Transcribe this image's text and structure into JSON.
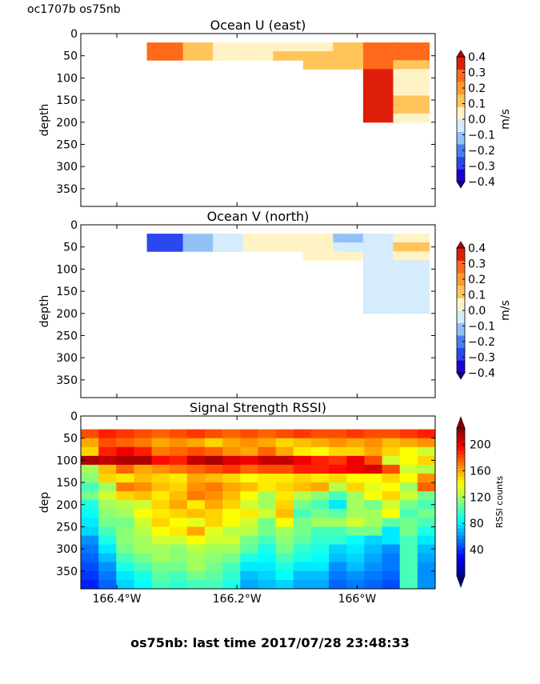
{
  "header": {
    "corner_label": "oc1707b os75nb"
  },
  "footer": {
    "text": "os75nb: last time 2017/07/28 23:48:33"
  },
  "colors": {
    "velocity_levels": [
      "#1a00d6",
      "#2b47ee",
      "#4a7ff2",
      "#93c1f6",
      "#d4ecfc",
      "#fff3c6",
      "#ffc45a",
      "#ff9a2e",
      "#ff6a1a",
      "#df1e0a"
    ],
    "jet": [
      "#000080",
      "#0000ff",
      "#0080ff",
      "#00ffff",
      "#80ff80",
      "#ffff00",
      "#ff8000",
      "#ff0000",
      "#800000"
    ]
  },
  "chart_data": [
    {
      "type": "heatmap",
      "title": "Ocean U (east)",
      "ylabel": "depth",
      "ylim": [
        390,
        0
      ],
      "yticks": [
        "0",
        "50",
        "100",
        "150",
        "200",
        "250",
        "300",
        "350"
      ],
      "xlim": [
        -166.46,
        -165.87
      ],
      "xticks": [
        -166.4,
        -166.2,
        -166.0
      ],
      "colorbar": {
        "label": "m/s",
        "range": [
          -0.4,
          0.4
        ],
        "ticks": [
          "0.4",
          "0.3",
          "0.2",
          "0.1",
          "0.0",
          "−0.1",
          "−0.2",
          "−0.3",
          "−0.4"
        ]
      },
      "depths": [
        30,
        50,
        70,
        90,
        110,
        130,
        150,
        170,
        190
      ],
      "lons": [
        -166.32,
        -166.26,
        -166.21,
        -166.16,
        -166.11,
        -166.06,
        -166.01,
        -165.96,
        -165.91
      ],
      "values": [
        [
          0.28,
          0.14,
          0.02,
          0.02,
          0.03,
          0.01,
          0.14,
          0.26,
          0.3
        ],
        [
          0.28,
          0.13,
          0.04,
          0.04,
          0.08,
          0.12,
          0.14,
          0.27,
          0.24
        ],
        [
          null,
          null,
          null,
          null,
          null,
          0.12,
          0.12,
          0.3,
          0.14
        ],
        [
          null,
          null,
          null,
          null,
          null,
          null,
          null,
          0.36,
          0.03
        ],
        [
          null,
          null,
          null,
          null,
          null,
          null,
          null,
          0.34,
          0.03
        ],
        [
          null,
          null,
          null,
          null,
          null,
          null,
          null,
          0.34,
          0.06
        ],
        [
          null,
          null,
          null,
          null,
          null,
          null,
          null,
          0.38,
          0.12
        ],
        [
          null,
          null,
          null,
          null,
          null,
          null,
          null,
          0.38,
          0.1
        ],
        [
          null,
          null,
          null,
          null,
          null,
          null,
          null,
          0.38,
          0.05
        ]
      ]
    },
    {
      "type": "heatmap",
      "title": "Ocean V (north)",
      "ylabel": "depth",
      "ylim": [
        390,
        0
      ],
      "yticks": [
        "0",
        "50",
        "100",
        "150",
        "200",
        "250",
        "300",
        "350"
      ],
      "xlim": [
        -166.46,
        -165.87
      ],
      "xticks": [
        -166.4,
        -166.2,
        -166.0
      ],
      "colorbar": {
        "label": "m/s",
        "range": [
          -0.4,
          0.4
        ],
        "ticks": [
          "0.4",
          "0.3",
          "0.2",
          "0.1",
          "0.0",
          "−0.1",
          "−0.2",
          "−0.3",
          "−0.4"
        ]
      },
      "depths": [
        30,
        50,
        70,
        90,
        110,
        130,
        150,
        170,
        190
      ],
      "lons": [
        -166.32,
        -166.26,
        -166.21,
        -166.16,
        -166.11,
        -166.06,
        -166.01,
        -165.96,
        -165.91
      ],
      "values": [
        [
          -0.25,
          -0.13,
          -0.05,
          0.02,
          0.03,
          0.03,
          -0.12,
          -0.05,
          0.06
        ],
        [
          -0.25,
          -0.1,
          -0.04,
          0.01,
          0.02,
          0.03,
          -0.05,
          -0.05,
          0.1
        ],
        [
          null,
          null,
          null,
          null,
          null,
          0.03,
          0.03,
          -0.05,
          0.05
        ],
        [
          null,
          null,
          null,
          null,
          null,
          null,
          null,
          -0.05,
          -0.05
        ],
        [
          null,
          null,
          null,
          null,
          null,
          null,
          null,
          -0.05,
          -0.05
        ],
        [
          null,
          null,
          null,
          null,
          null,
          null,
          null,
          -0.05,
          -0.05
        ],
        [
          null,
          null,
          null,
          null,
          null,
          null,
          null,
          -0.05,
          -0.05
        ],
        [
          null,
          null,
          null,
          null,
          null,
          null,
          null,
          -0.05,
          -0.05
        ],
        [
          null,
          null,
          null,
          null,
          null,
          null,
          null,
          -0.08,
          -0.05
        ]
      ]
    },
    {
      "type": "heatmap",
      "title": "Signal Strength RSSI)",
      "ylabel": "dep",
      "ylim": [
        390,
        0
      ],
      "yticks": [
        "0",
        "50",
        "100",
        "150",
        "200",
        "250",
        "300",
        "350"
      ],
      "xlim": [
        -166.46,
        -165.87
      ],
      "xticks": [
        -166.4,
        -166.2,
        -166.0
      ],
      "xtick_labels": [
        "166.4°W",
        "166.2°W",
        "166°W"
      ],
      "colorbar": {
        "label": "RSSI counts",
        "range": [
          0,
          225
        ],
        "ticks": [
          "200",
          "160",
          "120",
          "80",
          "40"
        ],
        "tick_values": [
          200,
          160,
          120,
          80,
          40
        ]
      },
      "lon_edges_count": 20,
      "depth_edges": [
        30,
        50,
        70,
        90,
        110,
        130,
        150,
        170,
        190,
        210,
        230,
        250,
        270,
        290,
        310,
        330,
        350,
        370,
        390
      ],
      "values": [
        [
          180,
          190,
          185,
          180,
          175,
          180,
          185,
          180,
          175,
          180,
          175,
          180,
          185,
          180,
          180,
          185,
          180,
          180,
          185,
          190
        ],
        [
          160,
          180,
          175,
          170,
          160,
          165,
          160,
          150,
          160,
          165,
          160,
          150,
          155,
          160,
          165,
          160,
          165,
          155,
          160,
          165
        ],
        [
          150,
          190,
          200,
          190,
          170,
          175,
          180,
          175,
          165,
          160,
          175,
          160,
          145,
          140,
          150,
          150,
          160,
          150,
          140,
          130
        ],
        [
          215,
          210,
          215,
          215,
          195,
          190,
          210,
          215,
          205,
          200,
          210,
          210,
          200,
          190,
          185,
          200,
          180,
          130,
          140,
          150
        ],
        [
          120,
          155,
          175,
          160,
          165,
          170,
          175,
          180,
          185,
          175,
          180,
          180,
          190,
          190,
          195,
          200,
          205,
          180,
          130,
          125
        ],
        [
          115,
          150,
          145,
          155,
          150,
          145,
          160,
          155,
          150,
          140,
          145,
          145,
          150,
          145,
          150,
          140,
          140,
          150,
          140,
          165
        ],
        [
          100,
          120,
          170,
          165,
          155,
          150,
          165,
          170,
          160,
          155,
          145,
          150,
          155,
          160,
          125,
          150,
          135,
          140,
          120,
          175
        ],
        [
          110,
          130,
          150,
          155,
          145,
          155,
          170,
          165,
          155,
          140,
          120,
          145,
          125,
          115,
          100,
          120,
          140,
          150,
          130,
          110
        ],
        [
          90,
          120,
          125,
          130,
          150,
          160,
          145,
          160,
          150,
          130,
          120,
          150,
          110,
          100,
          80,
          120,
          110,
          130,
          110,
          100
        ],
        [
          85,
          115,
          120,
          140,
          145,
          150,
          155,
          150,
          140,
          145,
          130,
          155,
          100,
          110,
          105,
          120,
          120,
          140,
          100,
          110
        ],
        [
          80,
          110,
          110,
          130,
          150,
          140,
          135,
          150,
          140,
          130,
          110,
          140,
          110,
          120,
          120,
          130,
          120,
          105,
          110,
          100
        ],
        [
          75,
          100,
          115,
          125,
          140,
          145,
          160,
          135,
          125,
          125,
          110,
          120,
          110,
          100,
          100,
          110,
          110,
          80,
          110,
          90
        ],
        [
          60,
          90,
          115,
          120,
          130,
          130,
          140,
          130,
          130,
          110,
          100,
          115,
          105,
          95,
          95,
          85,
          75,
          80,
          100,
          80
        ],
        [
          55,
          80,
          110,
          120,
          120,
          115,
          125,
          120,
          120,
          105,
          90,
          110,
          95,
          90,
          75,
          80,
          70,
          60,
          100,
          70
        ],
        [
          50,
          70,
          100,
          110,
          120,
          115,
          120,
          115,
          110,
          90,
          85,
          100,
          90,
          85,
          70,
          75,
          65,
          55,
          100,
          65
        ],
        [
          45,
          60,
          90,
          100,
          110,
          110,
          120,
          110,
          100,
          80,
          80,
          90,
          80,
          80,
          60,
          70,
          60,
          55,
          100,
          60
        ],
        [
          40,
          55,
          80,
          90,
          105,
          100,
          110,
          105,
          95,
          70,
          75,
          85,
          70,
          70,
          55,
          60,
          55,
          50,
          100,
          60
        ],
        [
          35,
          50,
          75,
          85,
          100,
          95,
          100,
          100,
          90,
          65,
          70,
          75,
          65,
          65,
          50,
          55,
          50,
          45,
          100,
          60
        ]
      ]
    }
  ]
}
